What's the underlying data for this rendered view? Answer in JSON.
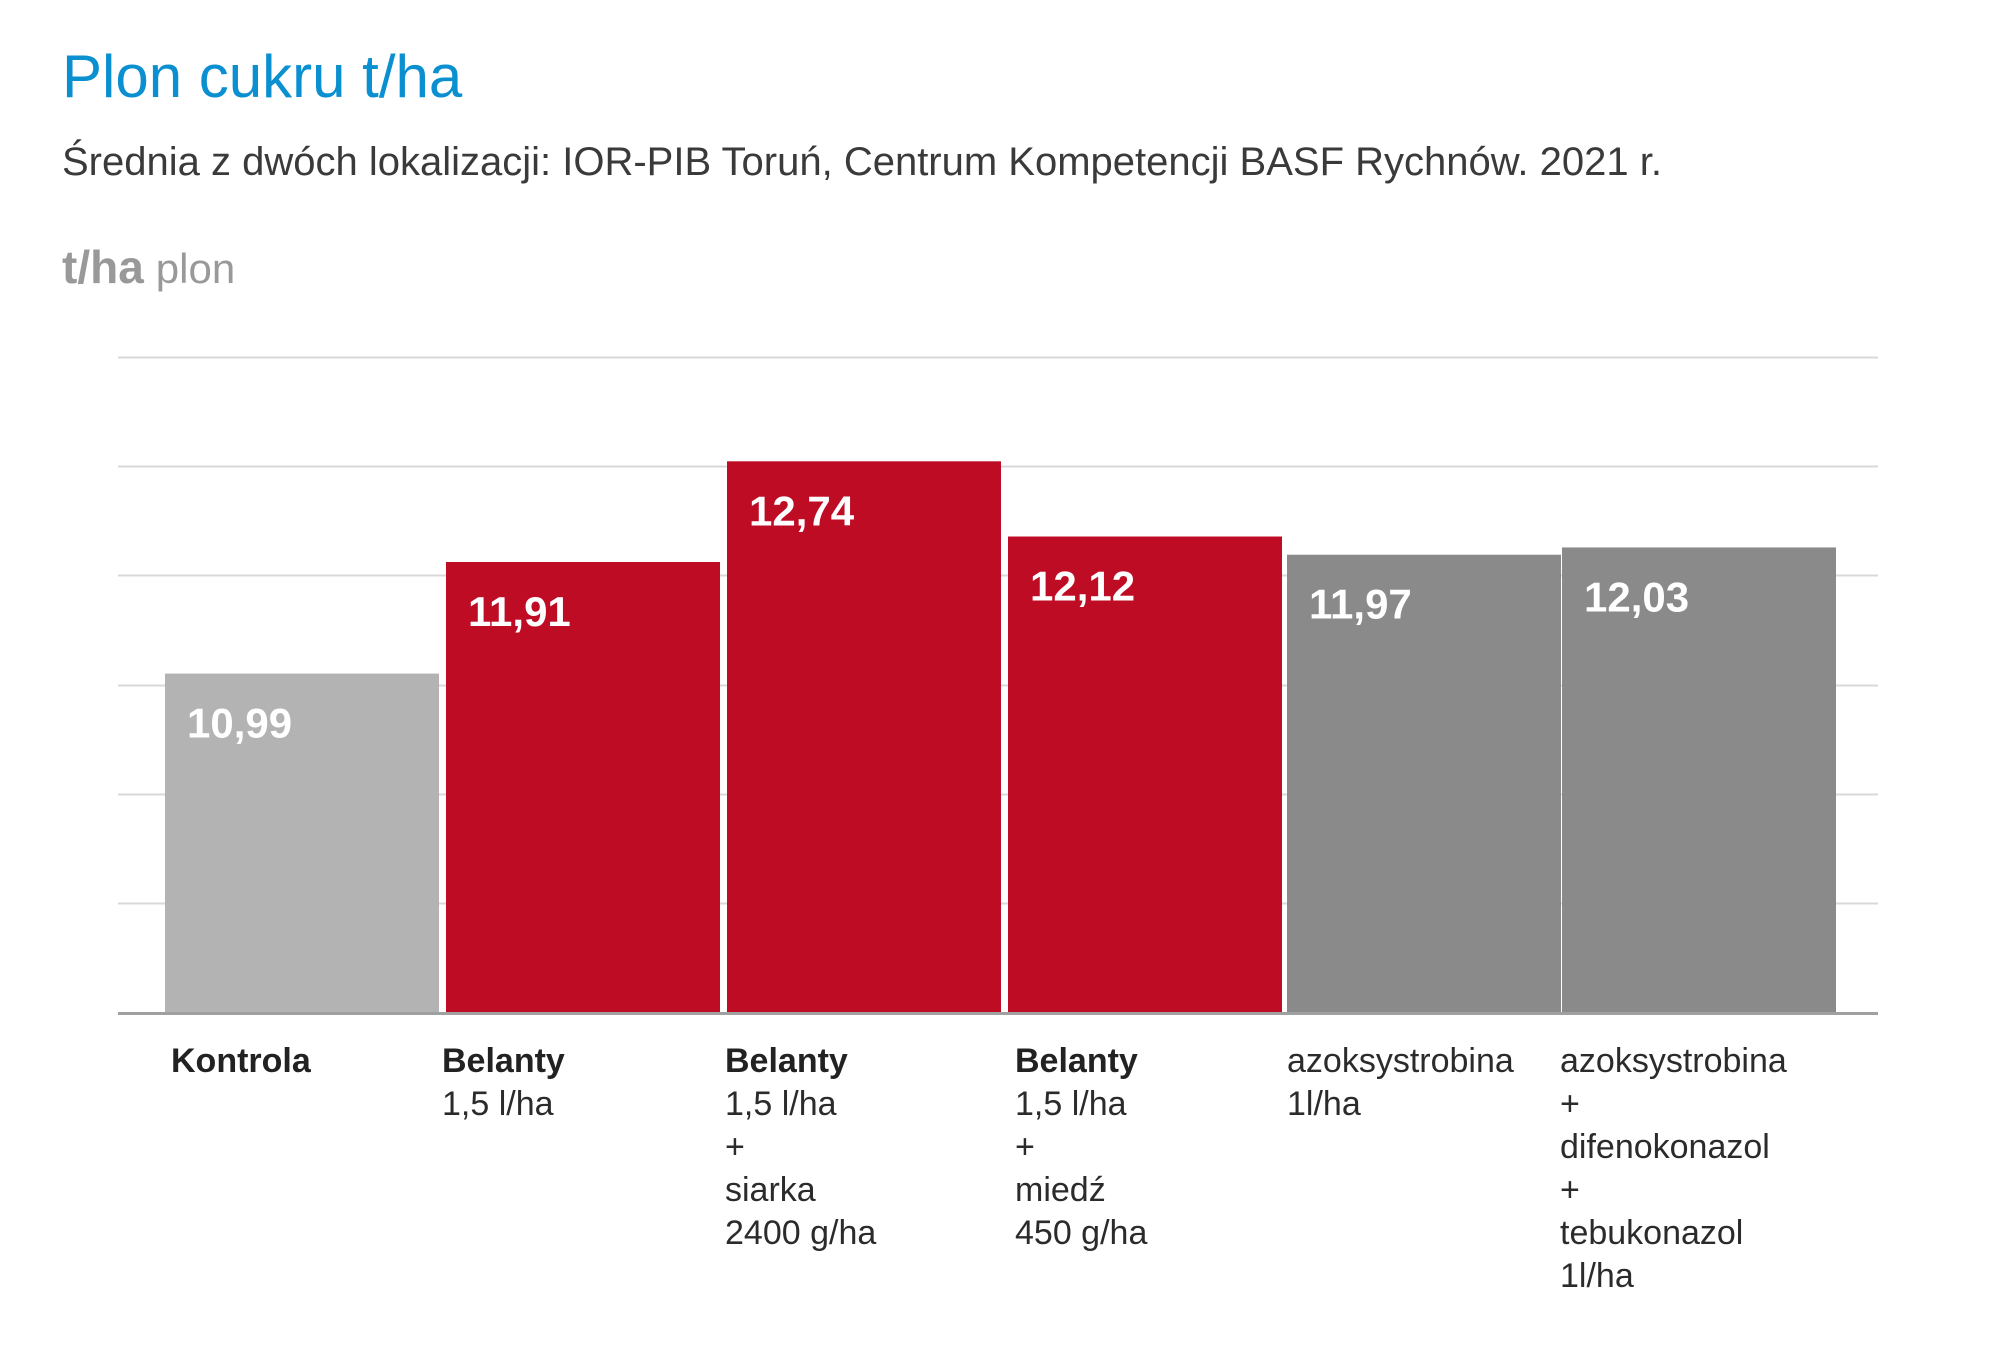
{
  "title": "Plon cukru t/ha",
  "subtitle": "Średnia z dwóch lokalizacji: IOR-PIB Toruń, Centrum Kompetencji BASF Rychnów. 2021 r.",
  "unit_bold": "t/ha",
  "unit_light": "plon",
  "colors": {
    "title": "#0a8fd0",
    "control": "#b3b3b3",
    "belanty": "#be0c24",
    "reference": "#8a8a8a",
    "grid": "#d9d9d9",
    "axis": "#a0a0a0"
  },
  "chart_data": {
    "type": "bar",
    "title": "Plon cukru t/ha",
    "subtitle": "Średnia z dwóch lokalizacji: IOR-PIB Toruń, Centrum Kompetencji BASF Rychnów. 2021 r.",
    "ylabel": "t/ha plon",
    "xlabel": "",
    "grid": true,
    "ylim": [
      8.2,
      13.6
    ],
    "categories": [
      "Kontrola",
      "Belanty 1,5 l/ha",
      "Belanty 1,5 l/ha + siarka 2400 g/ha",
      "Belanty 1,5 l/ha + miedź 450 g/ha",
      "azoksystrobina 1l/ha",
      "azoksystrobina + difenokonazol + tebukonazol 1l/ha"
    ],
    "values": [
      10.99,
      11.91,
      12.74,
      12.12,
      11.97,
      12.03
    ],
    "value_labels": [
      "10,99",
      "11,91",
      "12,74",
      "12,12",
      "11,97",
      "12,03"
    ],
    "bar_colors": [
      "#b3b3b3",
      "#be0c24",
      "#be0c24",
      "#be0c24",
      "#8a8a8a",
      "#8a8a8a"
    ],
    "label_lines": [
      {
        "bold": "Kontrola",
        "lines": []
      },
      {
        "bold": "Belanty",
        "lines": [
          "1,5 l/ha"
        ]
      },
      {
        "bold": "Belanty",
        "lines": [
          "1,5 l/ha",
          "+",
          "siarka",
          "2400 g/ha"
        ]
      },
      {
        "bold": "Belanty",
        "lines": [
          "1,5 l/ha",
          "+",
          "miedź",
          "450 g/ha"
        ]
      },
      {
        "bold": "",
        "lines": [
          "azoksystrobina",
          "1l/ha"
        ]
      },
      {
        "bold": "",
        "lines": [
          "azoksystrobina",
          "+",
          "difenokonazol",
          "+",
          "tebukonazol",
          "1l/ha"
        ]
      }
    ]
  }
}
